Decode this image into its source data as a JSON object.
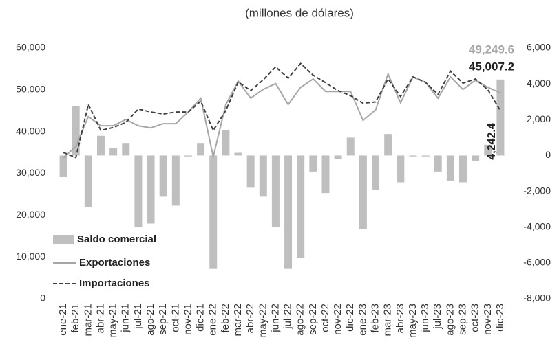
{
  "chart_data": {
    "type": "bar-line",
    "subtitle": "(millones de dólares)",
    "categories": [
      "ene-21",
      "feb-21",
      "mar-21",
      "abr-21",
      "may-21",
      "jun-21",
      "jul-21",
      "ago-21",
      "sep-21",
      "oct-21",
      "nov-21",
      "dic-21",
      "ene-22",
      "feb-22",
      "mar-22",
      "abr-22",
      "may-22",
      "jun-22",
      "jul-22",
      "ago-22",
      "sep-22",
      "oct-22",
      "nov-22",
      "dic-22",
      "ene-23",
      "feb-23",
      "mar-23",
      "abr-23",
      "may-23",
      "jun-23",
      "jul-23",
      "ago-23",
      "sep-23",
      "oct-23",
      "nov-23",
      "dic-23"
    ],
    "series": [
      {
        "name": "Saldo comercial",
        "type": "bar",
        "axis": "y2",
        "color": "#bfbfbf",
        "values": [
          -1200,
          2750,
          -2900,
          1100,
          400,
          700,
          -4000,
          -3800,
          -2300,
          -2800,
          -50,
          700,
          -6300,
          1400,
          150,
          -1800,
          -2300,
          -4000,
          -6300,
          -5700,
          -900,
          -2100,
          -200,
          1000,
          -4100,
          -1900,
          1200,
          -1500,
          -50,
          -50,
          -900,
          -1400,
          -1500,
          -300,
          600,
          4242.4
        ]
      },
      {
        "name": "Exportaciones",
        "type": "line",
        "color": "#a6a6a6",
        "values": [
          33700,
          36500,
          43600,
          41400,
          41400,
          42900,
          41400,
          40900,
          41900,
          41900,
          44700,
          48000,
          34000,
          46400,
          52100,
          48000,
          50100,
          51500,
          46500,
          50600,
          52600,
          49600,
          49600,
          49600,
          42700,
          45200,
          53800,
          46900,
          53100,
          51800,
          48000,
          53100,
          50100,
          52300,
          50600,
          49249.6
        ]
      },
      {
        "name": "Importaciones",
        "type": "line",
        "dashed": true,
        "color": "#404040",
        "values": [
          35000,
          33800,
          46500,
          40300,
          41000,
          42200,
          45400,
          44700,
          44200,
          44700,
          44700,
          47300,
          40300,
          45000,
          51900,
          49800,
          52400,
          55500,
          52800,
          56300,
          53500,
          51700,
          49800,
          48600,
          46800,
          47100,
          52600,
          48400,
          53100,
          51800,
          48900,
          54500,
          51600,
          52600,
          50000,
          45007.2
        ]
      }
    ],
    "annotations": [
      "49,249.6",
      "45,007.2",
      "4,242.4"
    ],
    "ylim": [
      0,
      60000
    ],
    "yticks": [
      0,
      {
        "value": 10000,
        "label": "10,000"
      },
      {
        "value": 20000,
        "label": "20,000"
      },
      {
        "value": 30000,
        "label": "30,000"
      },
      {
        "value": 40000,
        "label": "40,000"
      },
      {
        "value": 50000,
        "label": "50,000"
      },
      {
        "value": 60000,
        "label": "60,000"
      }
    ],
    "y2lim": [
      -8000,
      6000
    ],
    "y2ticks": [
      {
        "value": -8000,
        "label": "-8,000"
      },
      {
        "value": -6000,
        "label": "-6,000"
      },
      {
        "value": -4000,
        "label": "-4,000"
      },
      {
        "value": -2000,
        "label": "-2,000"
      },
      0,
      {
        "value": 2000,
        "label": "2,000"
      },
      {
        "value": 4000,
        "label": "4,000"
      },
      {
        "value": 6000,
        "label": "6,000"
      }
    ]
  }
}
